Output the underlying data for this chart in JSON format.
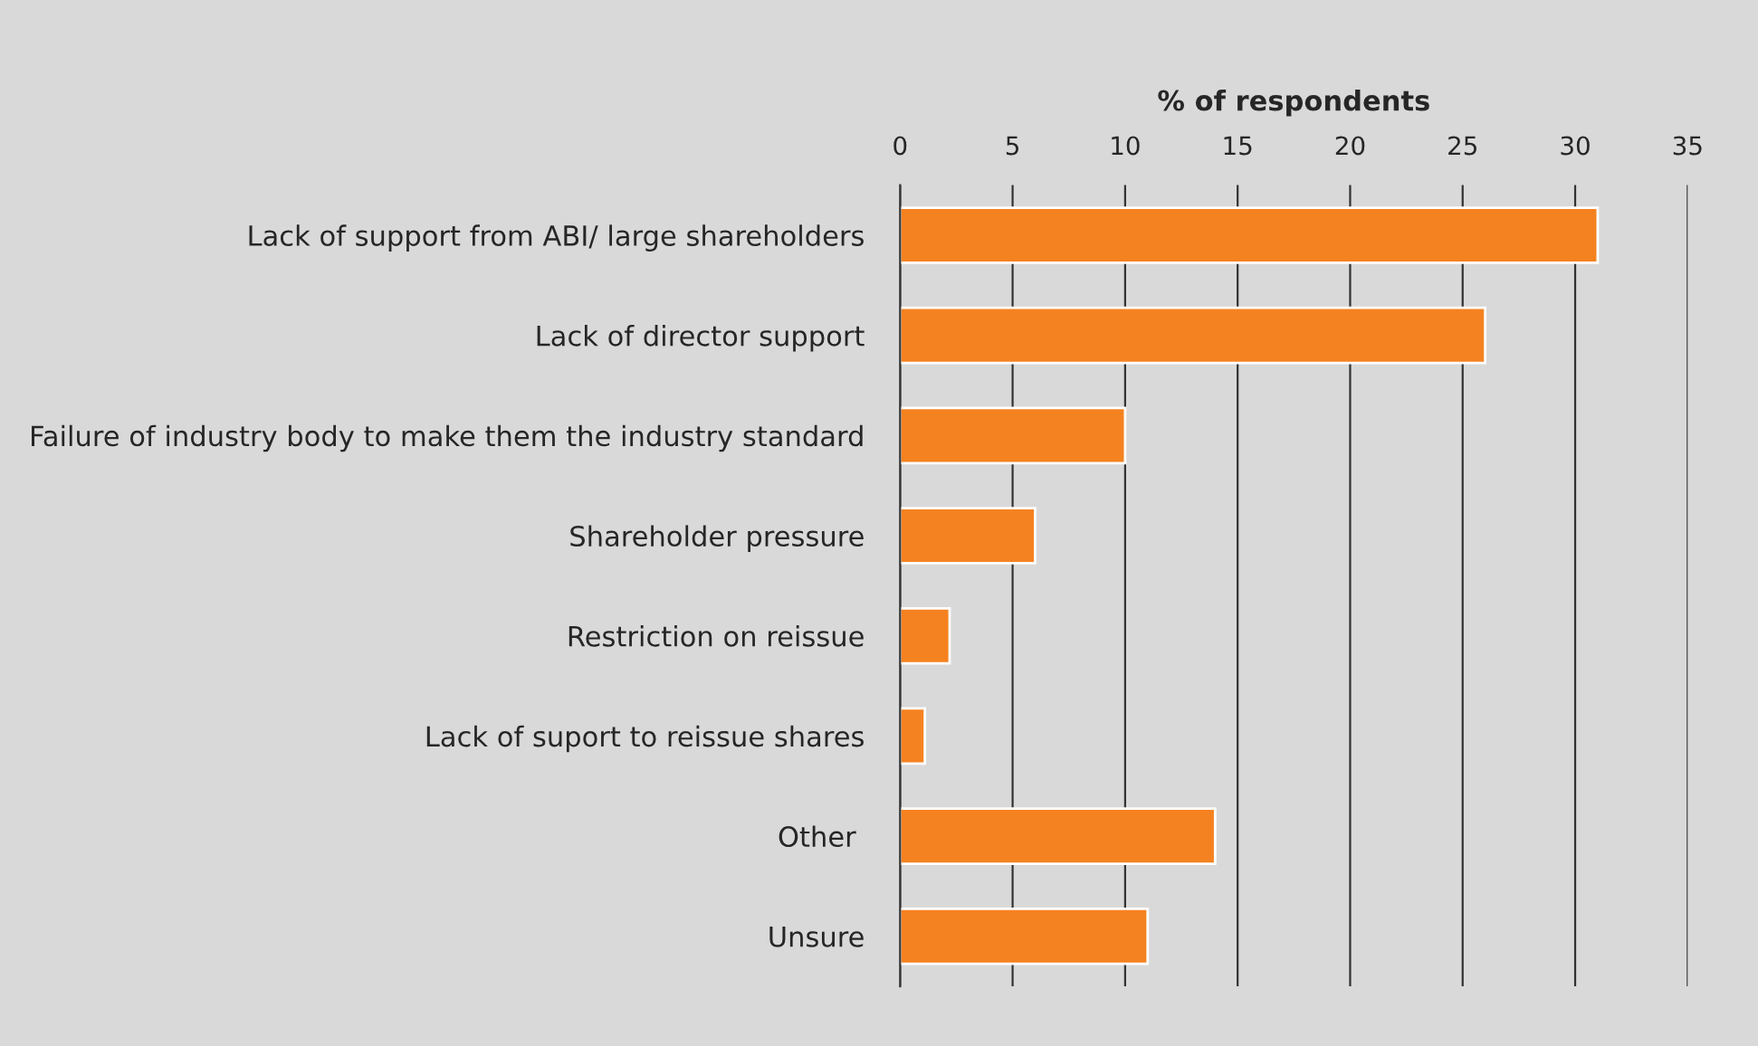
{
  "chart_data": {
    "type": "bar",
    "orientation": "horizontal",
    "xlabel": "% of respondents",
    "categories": [
      "Lack of support from ABI/ large shareholders",
      "Lack of director support",
      "Failure of industry body to make them the industry standard",
      "Shareholder pressure",
      "Restriction on reissue",
      "Lack of suport to reissue shares",
      "Other ",
      "Unsure"
    ],
    "values": [
      31,
      26,
      10,
      6,
      2.2,
      1.1,
      14,
      11
    ],
    "color": "#f58220",
    "xlim": [
      0,
      35
    ],
    "xticks": [
      0,
      5,
      10,
      15,
      20,
      25,
      30,
      35
    ],
    "grid": "x",
    "legend": false
  }
}
